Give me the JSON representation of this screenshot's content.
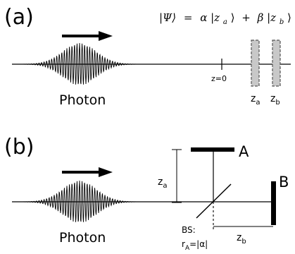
{
  "panel_a": {
    "label": "(a)",
    "equation": {
      "lhs": "|Ψ⟩",
      "eq": "=",
      "alpha": "α",
      "ket_a": "|z",
      "ket_a_sub": "a",
      "ket_close": "⟩",
      "plus": "+",
      "beta": "β",
      "ket_b": "|z",
      "ket_b_sub": "b"
    },
    "photon_label": "Photon",
    "origin_label": "z=0",
    "pos_a": {
      "base": "z",
      "sub": "a"
    },
    "pos_b": {
      "base": "z",
      "sub": "b"
    }
  },
  "panel_b": {
    "label": "(b)",
    "photon_label": "Photon",
    "mirror_a_label": "A",
    "mirror_b_label": "B",
    "za": {
      "base": "z",
      "sub": "a"
    },
    "zb": {
      "base": "z",
      "sub": "b"
    },
    "bs_line1": "BS:",
    "bs_line2_prefix": "r",
    "bs_line2_sub": "A",
    "bs_line2_suffix": "=|α|"
  },
  "colors": {
    "ink": "#000000",
    "box_fill": "#c8c8c8",
    "box_stroke": "#555555"
  }
}
